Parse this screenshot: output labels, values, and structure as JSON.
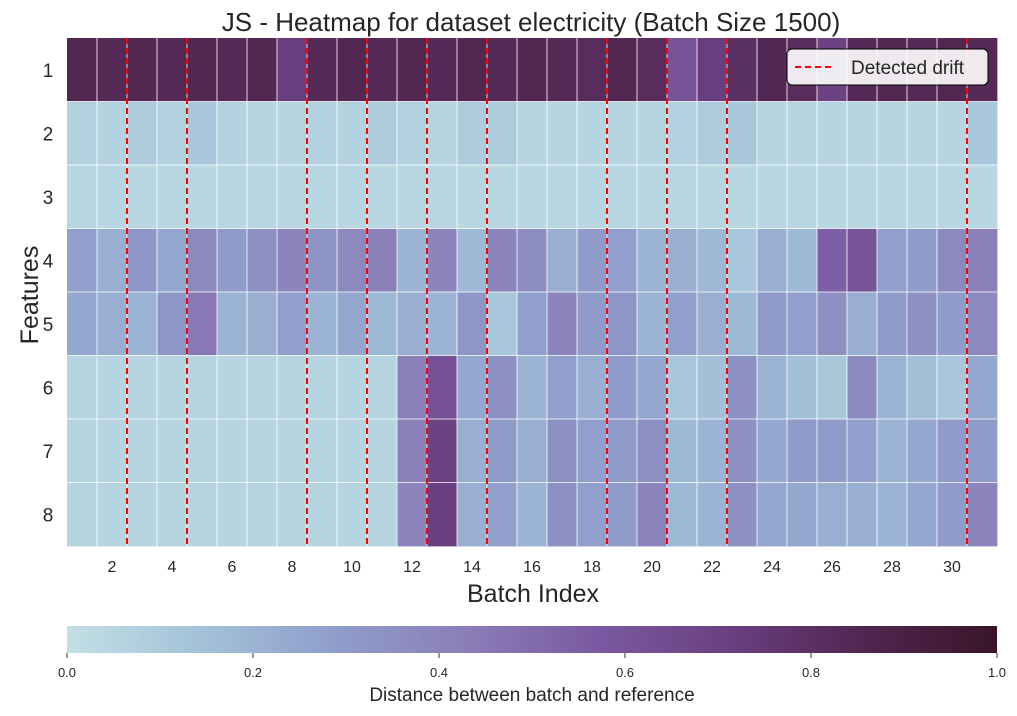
{
  "chart_data": {
    "type": "heatmap",
    "title": "JS - Heatmap for dataset electricity (Batch Size 1500)",
    "xlabel": "Batch Index",
    "ylabel": "Features",
    "x_tick_labels": [
      "2",
      "4",
      "6",
      "8",
      "10",
      "12",
      "14",
      "16",
      "18",
      "20",
      "22",
      "24",
      "26",
      "28",
      "30"
    ],
    "x_tick_values": [
      2,
      4,
      6,
      8,
      10,
      12,
      14,
      16,
      18,
      20,
      22,
      24,
      26,
      28,
      30
    ],
    "batches": [
      1,
      2,
      3,
      4,
      5,
      6,
      7,
      8,
      9,
      10,
      11,
      12,
      13,
      14,
      15,
      16,
      17,
      18,
      19,
      20,
      21,
      22,
      23,
      24,
      25,
      26,
      27,
      28,
      29,
      30,
      31
    ],
    "features": [
      "1",
      "2",
      "3",
      "4",
      "5",
      "6",
      "7",
      "8"
    ],
    "values": [
      [
        0.85,
        0.84,
        0.85,
        0.84,
        0.85,
        0.84,
        0.85,
        0.72,
        0.84,
        0.85,
        0.84,
        0.85,
        0.84,
        0.85,
        0.84,
        0.85,
        0.84,
        0.82,
        0.85,
        0.82,
        0.6,
        0.72,
        0.8,
        0.85,
        0.82,
        0.7,
        0.84,
        0.85,
        0.84,
        0.85,
        0.84
      ],
      [
        0.07,
        0.07,
        0.1,
        0.07,
        0.12,
        0.07,
        0.05,
        0.05,
        0.07,
        0.07,
        0.1,
        0.07,
        0.05,
        0.1,
        0.1,
        0.05,
        0.05,
        0.05,
        0.05,
        0.05,
        0.07,
        0.1,
        0.12,
        0.05,
        0.05,
        0.05,
        0.05,
        0.05,
        0.05,
        0.05,
        0.12
      ],
      [
        0.04,
        0.04,
        0.04,
        0.04,
        0.04,
        0.04,
        0.04,
        0.04,
        0.04,
        0.04,
        0.04,
        0.04,
        0.04,
        0.04,
        0.04,
        0.04,
        0.04,
        0.04,
        0.04,
        0.04,
        0.04,
        0.04,
        0.04,
        0.04,
        0.04,
        0.04,
        0.04,
        0.04,
        0.04,
        0.04,
        0.04
      ],
      [
        0.28,
        0.22,
        0.32,
        0.25,
        0.38,
        0.3,
        0.35,
        0.4,
        0.33,
        0.38,
        0.42,
        0.2,
        0.4,
        0.18,
        0.4,
        0.36,
        0.22,
        0.3,
        0.28,
        0.2,
        0.22,
        0.18,
        0.12,
        0.22,
        0.18,
        0.55,
        0.6,
        0.28,
        0.3,
        0.38,
        0.42
      ],
      [
        0.25,
        0.22,
        0.2,
        0.32,
        0.45,
        0.2,
        0.22,
        0.28,
        0.2,
        0.25,
        0.18,
        0.22,
        0.2,
        0.32,
        0.12,
        0.28,
        0.4,
        0.3,
        0.32,
        0.2,
        0.28,
        0.22,
        0.18,
        0.3,
        0.28,
        0.35,
        0.22,
        0.3,
        0.35,
        0.3,
        0.38
      ],
      [
        0.05,
        0.05,
        0.05,
        0.05,
        0.05,
        0.05,
        0.05,
        0.05,
        0.05,
        0.05,
        0.05,
        0.42,
        0.62,
        0.25,
        0.35,
        0.2,
        0.28,
        0.22,
        0.3,
        0.25,
        0.12,
        0.15,
        0.35,
        0.2,
        0.15,
        0.12,
        0.38,
        0.2,
        0.15,
        0.12,
        0.25
      ],
      [
        0.05,
        0.05,
        0.05,
        0.05,
        0.05,
        0.05,
        0.05,
        0.05,
        0.05,
        0.05,
        0.05,
        0.42,
        0.7,
        0.22,
        0.3,
        0.22,
        0.35,
        0.28,
        0.3,
        0.35,
        0.18,
        0.2,
        0.35,
        0.25,
        0.3,
        0.3,
        0.28,
        0.2,
        0.25,
        0.3,
        0.3
      ],
      [
        0.05,
        0.05,
        0.05,
        0.05,
        0.05,
        0.05,
        0.05,
        0.05,
        0.05,
        0.05,
        0.05,
        0.4,
        0.72,
        0.22,
        0.28,
        0.2,
        0.35,
        0.28,
        0.3,
        0.4,
        0.18,
        0.2,
        0.35,
        0.25,
        0.25,
        0.22,
        0.22,
        0.2,
        0.25,
        0.3,
        0.4
      ]
    ],
    "drift_batches": [
      2.5,
      4.5,
      8.5,
      10.5,
      12.5,
      14.5,
      18.5,
      20.5,
      22.5,
      30.5
    ],
    "legend_label": "Detected drift",
    "legend_position": "top-right",
    "colorbar": {
      "label": "Distance between batch and reference",
      "min": 0.0,
      "max": 1.0,
      "ticks": [
        "0.0",
        "0.2",
        "0.4",
        "0.6",
        "0.8",
        "1.0"
      ],
      "tick_values": [
        0.0,
        0.2,
        0.4,
        0.6,
        0.8,
        1.0
      ],
      "stops": [
        "#c2dfe5",
        "#a3c2d9",
        "#8f9ecb",
        "#8b7eb9",
        "#7a59a1",
        "#6a3f80",
        "#512650",
        "#3a1529"
      ]
    },
    "drift_line_color": "#ff0000",
    "grid_line_color": "#ffffff"
  }
}
